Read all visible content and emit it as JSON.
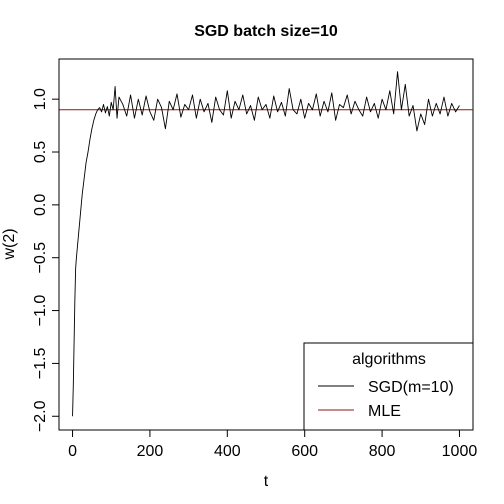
{
  "chart_data": {
    "type": "line",
    "title": "SGD batch size=10",
    "xlabel": "t",
    "ylabel": "w(2)",
    "xlim": [
      -35,
      1035
    ],
    "ylim": [
      -2.13,
      1.38
    ],
    "x_ticks": [
      0,
      200,
      400,
      600,
      800,
      1000
    ],
    "y_ticks": [
      -2.0,
      -1.5,
      -1.0,
      -0.5,
      0.0,
      0.5,
      1.0
    ],
    "y_tick_labels": [
      "−2.0",
      "−1.5",
      "−1.0",
      "−0.5",
      "0.0",
      "0.5",
      "1.0"
    ],
    "grid": false,
    "legend": {
      "title": "algorithms",
      "position": "bottom-right",
      "entries": [
        {
          "label": "SGD(m=10)",
          "color": "#000000"
        },
        {
          "label": "MLE",
          "color": "#8b1a1a"
        }
      ]
    },
    "series": [
      {
        "name": "SGD(m=10)",
        "color": "#000000",
        "x": [
          0,
          2,
          4,
          6,
          8,
          10,
          15,
          20,
          25,
          30,
          35,
          40,
          45,
          50,
          55,
          60,
          65,
          70,
          75,
          80,
          85,
          90,
          95,
          100,
          105,
          110,
          115,
          120,
          130,
          140,
          150,
          160,
          170,
          180,
          190,
          200,
          210,
          220,
          230,
          240,
          250,
          260,
          270,
          280,
          290,
          300,
          310,
          320,
          330,
          340,
          350,
          360,
          370,
          380,
          390,
          400,
          410,
          420,
          430,
          440,
          450,
          460,
          470,
          480,
          490,
          500,
          510,
          520,
          530,
          540,
          550,
          560,
          570,
          580,
          590,
          600,
          610,
          620,
          630,
          640,
          650,
          660,
          670,
          680,
          690,
          700,
          710,
          720,
          730,
          740,
          750,
          760,
          770,
          780,
          790,
          800,
          810,
          820,
          830,
          840,
          850,
          860,
          870,
          880,
          890,
          900,
          910,
          920,
          930,
          940,
          950,
          960,
          970,
          980,
          990,
          1000
        ],
        "y": [
          -2.0,
          -1.7,
          -1.3,
          -0.9,
          -0.6,
          -0.5,
          -0.3,
          -0.1,
          0.1,
          0.25,
          0.4,
          0.5,
          0.62,
          0.72,
          0.8,
          0.86,
          0.9,
          0.92,
          0.88,
          0.95,
          0.87,
          0.93,
          0.84,
          0.97,
          0.9,
          1.12,
          0.82,
          1.02,
          0.95,
          0.84,
          1.04,
          0.82,
          1.0,
          0.85,
          1.03,
          0.88,
          0.8,
          1.0,
          0.92,
          0.72,
          0.98,
          0.9,
          1.05,
          0.83,
          0.95,
          0.9,
          1.04,
          0.82,
          1.0,
          0.88,
          0.96,
          0.78,
          1.02,
          0.9,
          0.85,
          1.08,
          0.82,
          0.98,
          0.9,
          1.04,
          0.86,
          0.94,
          0.8,
          1.02,
          0.9,
          0.95,
          0.82,
          1.03,
          0.88,
          0.97,
          0.84,
          1.1,
          0.9,
          0.86,
          1.0,
          0.82,
          0.96,
          0.9,
          1.05,
          0.84,
          0.98,
          0.88,
          1.06,
          0.8,
          0.95,
          0.92,
          1.04,
          0.86,
          0.98,
          0.9,
          0.84,
          1.02,
          0.88,
          0.96,
          0.82,
          1.0,
          0.9,
          1.08,
          0.86,
          1.26,
          0.9,
          1.14,
          0.84,
          0.94,
          0.7,
          0.86,
          0.76,
          1.0,
          0.84,
          0.96,
          0.86,
          1.02,
          0.84,
          0.96,
          0.88,
          0.94
        ]
      },
      {
        "name": "MLE",
        "color": "#8b1a1a",
        "x": [
          -35,
          1035
        ],
        "y": [
          0.9,
          0.9
        ]
      }
    ]
  }
}
